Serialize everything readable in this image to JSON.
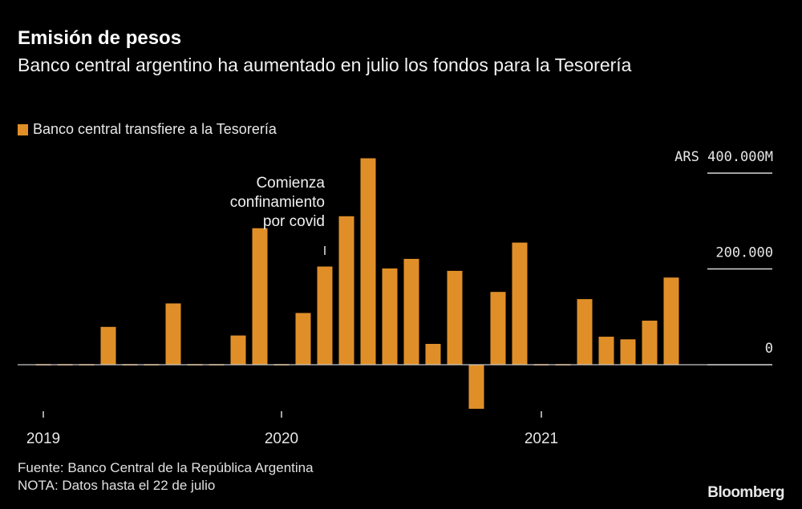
{
  "header": {
    "title": "Emisión de pesos",
    "subtitle": "Banco central argentino ha aumentado en julio los fondos para la Tesorería"
  },
  "footer": {
    "source": "Fuente: Banco Central de la República Argentina",
    "note": "NOTA: Datos hasta el 22 de julio",
    "logo": "Bloomberg"
  },
  "chart_data": {
    "type": "bar",
    "title": "Emisión de pesos",
    "subtitle": "Banco central argentino ha aumentado en julio los fondos para la Tesorería",
    "categories": [
      "2019-02",
      "2019-03",
      "2019-04",
      "2019-05",
      "2019-06",
      "2019-07",
      "2019-08",
      "2019-09",
      "2019-10",
      "2019-11",
      "2019-12",
      "2020-01",
      "2020-02",
      "2020-03",
      "2020-04",
      "2020-05",
      "2020-06",
      "2020-07",
      "2020-08",
      "2020-09",
      "2020-10",
      "2020-11",
      "2020-12",
      "2021-01",
      "2021-02",
      "2021-03",
      "2021-04",
      "2021-05",
      "2021-06",
      "2021-07"
    ],
    "series": [
      {
        "name": "Banco central transfiere a la Tesorería",
        "color": "#e08f28",
        "values": [
          0,
          0,
          0,
          79000,
          0,
          0,
          128000,
          0,
          0,
          61000,
          285000,
          0,
          108000,
          205000,
          310000,
          431000,
          201000,
          221000,
          43500,
          196000,
          -92000,
          152000,
          255000,
          0,
          0,
          137000,
          58500,
          53000,
          92000,
          182000
        ]
      }
    ],
    "legend": "top-left",
    "ylim": [
      -120000,
      440000
    ],
    "y_ticks": [
      {
        "value": 400000,
        "label": "ARS 400.000M"
      },
      {
        "value": 200000,
        "label": "200.000"
      },
      {
        "value": 0,
        "label": "0"
      }
    ],
    "x_ticks": [
      {
        "category": "2019-02",
        "label": "2019"
      },
      {
        "category": "2020-01",
        "label": "2020"
      },
      {
        "category": "2021-01",
        "label": "2021"
      }
    ],
    "annotations": [
      {
        "category": "2020-03",
        "text": [
          "Comienza",
          "confinamiento",
          "por covid"
        ]
      }
    ],
    "grid": false,
    "y_axis_position": "right"
  }
}
